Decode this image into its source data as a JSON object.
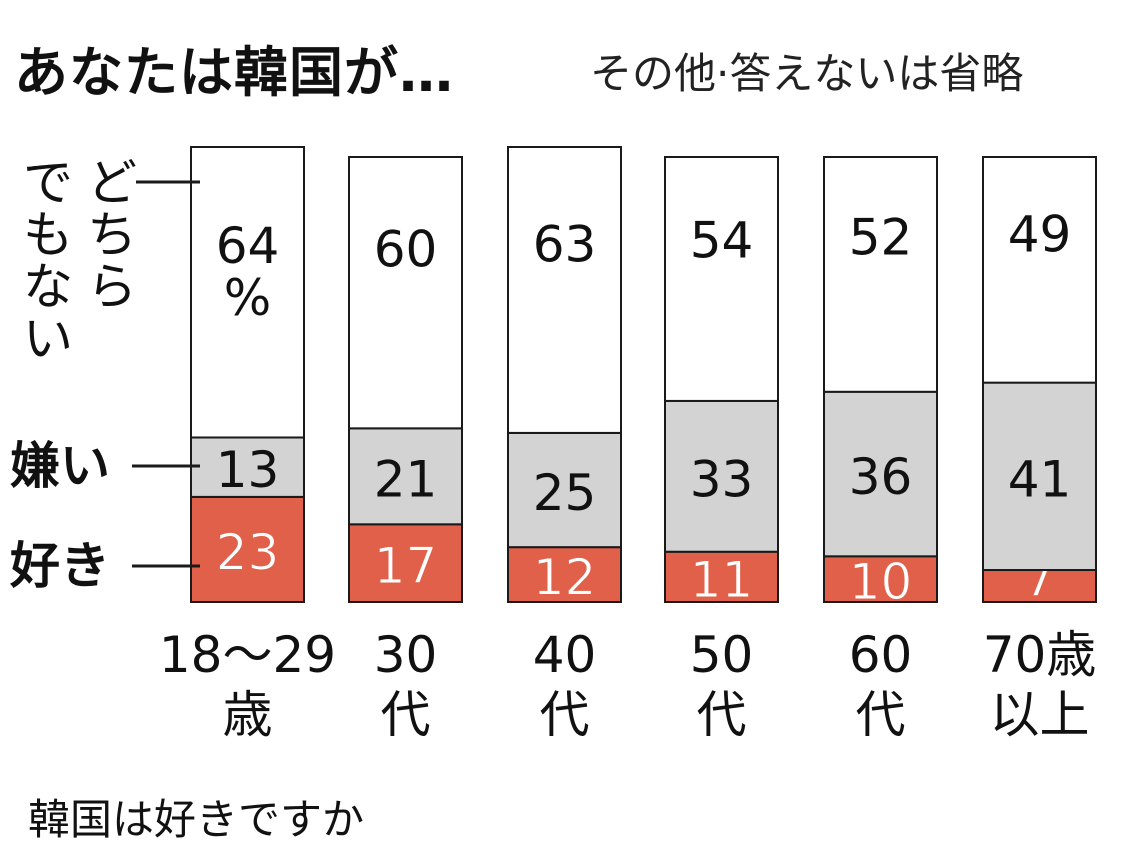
{
  "title": "あなたは韓国が…",
  "note": "その他·答えないは省略",
  "caption": "韓国は好きですか",
  "colors": {
    "like": "#e0604a",
    "dislike": "#d3d3d3",
    "neither": "#ffffff",
    "stroke": "#1a1a1a"
  },
  "chart_data": {
    "type": "bar",
    "stacked": true,
    "orientation": "vertical",
    "categories": [
      [
        "18～29",
        "歳"
      ],
      [
        "30",
        "代"
      ],
      [
        "40",
        "代"
      ],
      [
        "50",
        "代"
      ],
      [
        "60",
        "代"
      ],
      [
        "70歳",
        "以上"
      ]
    ],
    "series": [
      {
        "name": "好き",
        "values": [
          23,
          17,
          12,
          11,
          10,
          7
        ]
      },
      {
        "name": "嫌い",
        "values": [
          13,
          21,
          25,
          33,
          36,
          41
        ]
      },
      {
        "name": "どちらでもない",
        "values": [
          64,
          60,
          63,
          54,
          52,
          49
        ]
      }
    ],
    "first_label_unit": "%",
    "legend_lines": [
      [
        "どちら",
        "でもない"
      ],
      [
        "嫌い"
      ],
      [
        "好き"
      ]
    ]
  }
}
